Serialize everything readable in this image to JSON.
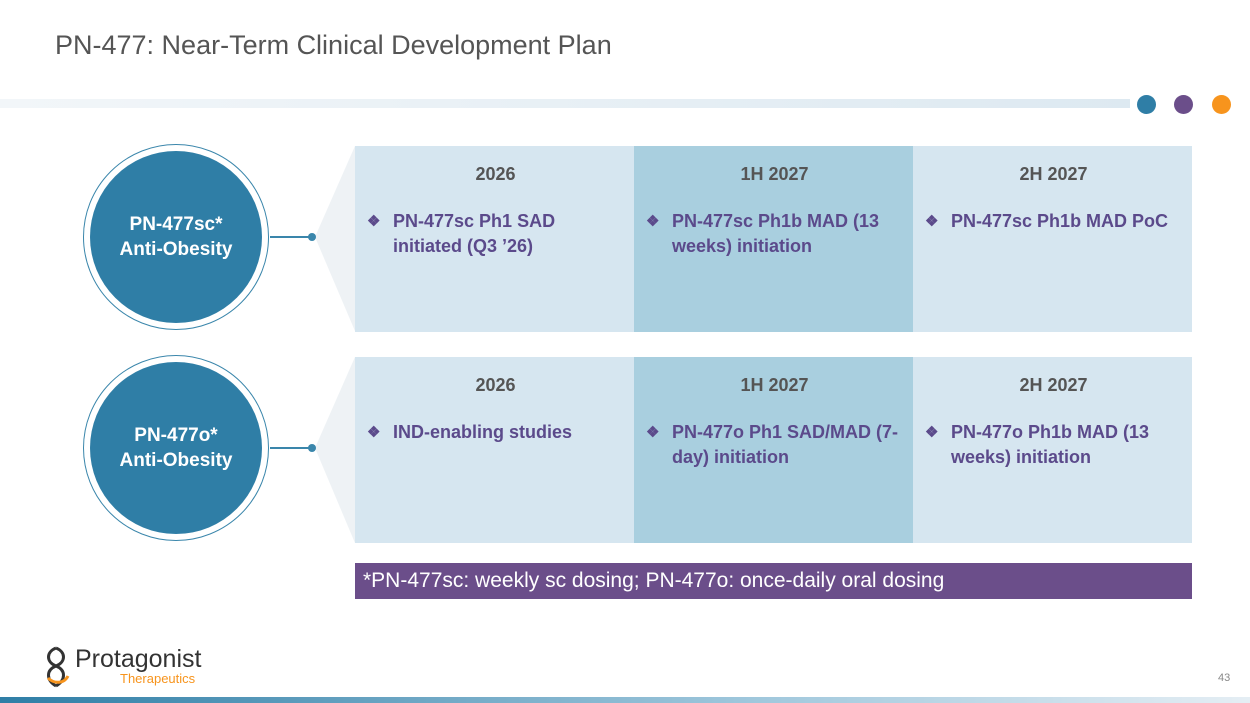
{
  "header": {
    "title": "PN-477: Near-Term Clinical Development Plan"
  },
  "rows": [
    {
      "label": [
        "PN-477sc*",
        "Anti-Obesity"
      ],
      "columns": [
        {
          "period": "2026",
          "item": "PN-477sc Ph1 SAD initiated (Q3 ’26)"
        },
        {
          "period": "1H 2027",
          "item": "PN-477sc Ph1b MAD (13 weeks) initiation"
        },
        {
          "period": "2H 2027",
          "item": "PN-477sc Ph1b MAD PoC"
        }
      ]
    },
    {
      "label": [
        "PN-477o*",
        "Anti-Obesity"
      ],
      "columns": [
        {
          "period": "2026",
          "item": "IND-enabling studies"
        },
        {
          "period": "1H 2027",
          "item": "PN-477o Ph1 SAD/MAD (7-day) initiation"
        },
        {
          "period": "2H 2027",
          "item": "PN-477o Ph1b MAD (13 weeks) initiation"
        }
      ]
    }
  ],
  "footnote": "*PN-477sc: weekly sc dosing; PN-477o: once-daily oral dosing",
  "logo": {
    "name": "Protagonist",
    "tagline": "Therapeutics"
  },
  "page_number": "43"
}
